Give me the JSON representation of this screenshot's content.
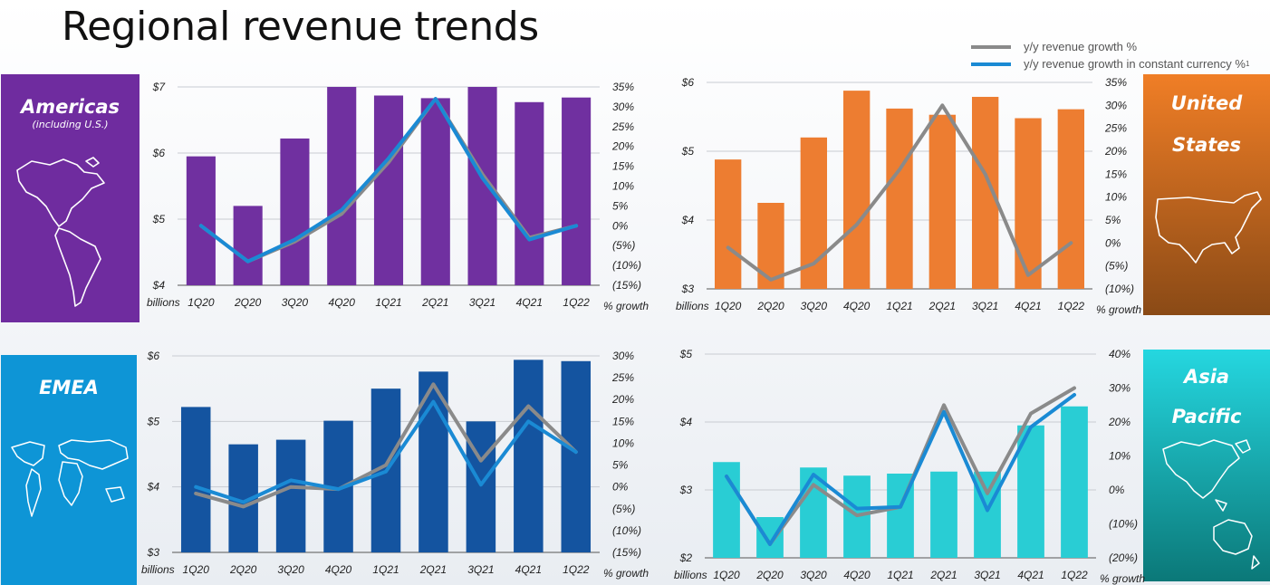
{
  "page": {
    "title": "Regional revenue trends"
  },
  "legend": [
    {
      "label": "y/y revenue growth %",
      "color": "#8a8a8a"
    },
    {
      "label": "y/y revenue growth in constant currency %",
      "sup": "1",
      "color": "#1a8ad4"
    }
  ],
  "regions": {
    "americas": {
      "name": "Americas",
      "subtitle": "(including U.S.)",
      "icon": "americas-map-icon"
    },
    "us": {
      "name_line1": "United",
      "name_line2": "States",
      "icon": "us-map-icon"
    },
    "emea": {
      "name": "EMEA",
      "icon": "world-map-icon"
    },
    "ap": {
      "name_line1": "Asia",
      "name_line2": "Pacific",
      "icon": "asia-pacific-map-icon"
    }
  },
  "chart_data": [
    {
      "id": "americas",
      "type": "bar",
      "bar_color": "#7030a0",
      "grid": true,
      "categories": [
        "1Q20",
        "2Q20",
        "3Q20",
        "4Q20",
        "1Q21",
        "2Q21",
        "3Q21",
        "4Q21",
        "1Q22"
      ],
      "values": [
        5.95,
        5.2,
        6.22,
        7.0,
        6.87,
        6.83,
        7.0,
        6.77,
        6.84
      ],
      "ylim": [
        4,
        7
      ],
      "yticks": [
        4,
        5,
        6,
        7
      ],
      "ytick_labels": [
        "$4",
        "$5",
        "$6",
        "$7"
      ],
      "y_unit_label": "billions",
      "y2lim": [
        -15,
        35
      ],
      "y2ticks": [
        -15,
        -10,
        -5,
        0,
        5,
        10,
        15,
        20,
        25,
        30,
        35
      ],
      "y2tick_labels": [
        "(15%)",
        "(10%)",
        "(5%)",
        "0%",
        "5%",
        "10%",
        "15%",
        "20%",
        "25%",
        "30%",
        "35%"
      ],
      "y2_unit_label": "% growth",
      "lines": [
        {
          "name": "y/y revenue growth %",
          "color": "#8a8a8a",
          "values": [
            0,
            -9,
            -4,
            3,
            16,
            32,
            13,
            -3,
            0
          ]
        },
        {
          "name": "y/y revenue growth in constant currency %",
          "color": "#1a8ad4",
          "values": [
            0,
            -9,
            -3.5,
            4,
            17,
            32,
            12,
            -3.5,
            0
          ]
        }
      ]
    },
    {
      "id": "us",
      "type": "bar",
      "bar_color": "#ed7d31",
      "grid": true,
      "categories": [
        "1Q20",
        "2Q20",
        "3Q20",
        "4Q20",
        "1Q21",
        "2Q21",
        "3Q21",
        "4Q21",
        "1Q22"
      ],
      "values": [
        4.88,
        4.25,
        5.2,
        5.88,
        5.62,
        5.53,
        5.79,
        5.48,
        5.61
      ],
      "ylim": [
        3,
        6
      ],
      "yticks": [
        3,
        4,
        5,
        6
      ],
      "ytick_labels": [
        "$3",
        "$4",
        "$5",
        "$6"
      ],
      "y_unit_label": "billions",
      "y2lim": [
        -10,
        35
      ],
      "y2ticks": [
        -10,
        -5,
        0,
        5,
        10,
        15,
        20,
        25,
        30,
        35
      ],
      "y2tick_labels": [
        "(10%)",
        "(5%)",
        "0%",
        "5%",
        "10%",
        "15%",
        "20%",
        "25%",
        "30%",
        "35%"
      ],
      "y2_unit_label": "% growth",
      "lines": [
        {
          "name": "y/y revenue growth %",
          "color": "#8a8a8a",
          "values": [
            -1,
            -8,
            -4.5,
            4,
            16,
            30,
            15,
            -7,
            0
          ]
        }
      ]
    },
    {
      "id": "emea",
      "type": "bar",
      "bar_color": "#1454a0",
      "grid": true,
      "categories": [
        "1Q20",
        "2Q20",
        "3Q20",
        "4Q20",
        "1Q21",
        "2Q21",
        "3Q21",
        "4Q21",
        "1Q22"
      ],
      "values": [
        5.22,
        4.65,
        4.72,
        5.01,
        5.5,
        5.76,
        5.0,
        5.94,
        5.92
      ],
      "ylim": [
        3,
        6
      ],
      "yticks": [
        3,
        4,
        5,
        6
      ],
      "ytick_labels": [
        "$3",
        "$4",
        "$5",
        "$6"
      ],
      "y_unit_label": "billions",
      "y2lim": [
        -15,
        30
      ],
      "y2ticks": [
        -15,
        -10,
        -5,
        0,
        5,
        10,
        15,
        20,
        25,
        30
      ],
      "y2tick_labels": [
        "(15%)",
        "(10%)",
        "(5%)",
        "0%",
        "5%",
        "10%",
        "15%",
        "20%",
        "25%",
        "30%"
      ],
      "y2_unit_label": "% growth",
      "lines": [
        {
          "name": "y/y revenue growth %",
          "color": "#8a8a8a",
          "values": [
            -1.5,
            -4.5,
            0,
            -0.5,
            5,
            23.5,
            6,
            18.5,
            8
          ]
        },
        {
          "name": "y/y revenue growth in constant currency %",
          "color": "#1a8ad4",
          "values": [
            0,
            -3.5,
            1.5,
            -0.5,
            3.5,
            19.5,
            0.5,
            15,
            8
          ]
        }
      ]
    },
    {
      "id": "ap",
      "type": "bar",
      "bar_color": "#29cdd4",
      "grid": true,
      "categories": [
        "1Q20",
        "2Q20",
        "3Q20",
        "4Q20",
        "1Q21",
        "2Q21",
        "3Q21",
        "4Q21",
        "1Q22"
      ],
      "values": [
        3.41,
        2.6,
        3.33,
        3.21,
        3.24,
        3.27,
        3.27,
        3.95,
        4.23
      ],
      "ylim": [
        2,
        5
      ],
      "yticks": [
        2,
        3,
        4,
        5
      ],
      "ytick_labels": [
        "$2",
        "$3",
        "$4",
        "$5"
      ],
      "y_unit_label": "billions",
      "y2lim": [
        -20,
        40
      ],
      "y2ticks": [
        -20,
        -10,
        0,
        10,
        20,
        30,
        40
      ],
      "y2tick_labels": [
        "(20%)",
        "(10%)",
        "0%",
        "10%",
        "20%",
        "30%",
        "40%"
      ],
      "y2_unit_label": "% growth",
      "lines": [
        {
          "name": "y/y revenue growth %",
          "color": "#8a8a8a",
          "values": [
            4,
            -16,
            1.5,
            -7.5,
            -5,
            25,
            -1,
            22.5,
            30
          ]
        },
        {
          "name": "y/y revenue growth in constant currency %",
          "color": "#1a8ad4",
          "values": [
            4,
            -16,
            4.5,
            -5.5,
            -5,
            23,
            -6,
            18.5,
            28
          ]
        }
      ]
    }
  ]
}
